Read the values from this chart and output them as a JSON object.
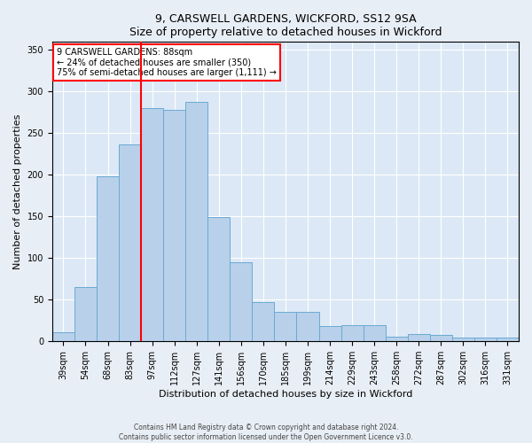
{
  "title1": "9, CARSWELL GARDENS, WICKFORD, SS12 9SA",
  "title2": "Size of property relative to detached houses in Wickford",
  "xlabel": "Distribution of detached houses by size in Wickford",
  "ylabel": "Number of detached properties",
  "categories": [
    "39sqm",
    "54sqm",
    "68sqm",
    "83sqm",
    "97sqm",
    "112sqm",
    "127sqm",
    "141sqm",
    "156sqm",
    "170sqm",
    "185sqm",
    "199sqm",
    "214sqm",
    "229sqm",
    "243sqm",
    "258sqm",
    "272sqm",
    "287sqm",
    "302sqm",
    "316sqm",
    "331sqm"
  ],
  "values": [
    11,
    65,
    198,
    237,
    280,
    278,
    288,
    149,
    95,
    47,
    35,
    35,
    18,
    19,
    19,
    6,
    9,
    8,
    4,
    5,
    4
  ],
  "bar_color": "#b8d0ea",
  "bar_edge_color": "#6aaad4",
  "vline_x": 3.5,
  "vline_color": "red",
  "annotation_text": "9 CARSWELL GARDENS: 88sqm\n← 24% of detached houses are smaller (350)\n75% of semi-detached houses are larger (1,111) →",
  "annotation_box_color": "white",
  "annotation_box_edge_color": "red",
  "ylim": [
    0,
    360
  ],
  "yticks": [
    0,
    50,
    100,
    150,
    200,
    250,
    300,
    350
  ],
  "footer1": "Contains HM Land Registry data © Crown copyright and database right 2024.",
  "footer2": "Contains public sector information licensed under the Open Government Licence v3.0.",
  "background_color": "#e8eef5",
  "plot_bg_color": "#dce8f5",
  "title_fontsize": 9,
  "axis_label_fontsize": 8,
  "tick_fontsize": 7,
  "annotation_fontsize": 7,
  "footer_fontsize": 5.5
}
